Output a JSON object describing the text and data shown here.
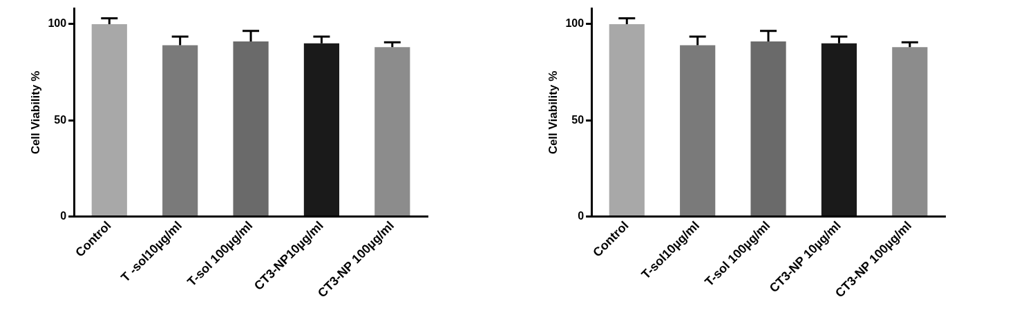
{
  "chart_data": [
    {
      "type": "bar",
      "ylabel": "Cell Viability %",
      "categories": [
        "Control",
        "T -sol10µg/ml",
        "T-sol 100µg/ml",
        "CT3-NP10µg/ml",
        "CT3-NP 100µg/ml"
      ],
      "values": [
        100,
        89,
        91,
        90,
        88
      ],
      "errors": [
        3,
        4.5,
        5.5,
        3.5,
        2.5
      ],
      "colors": [
        "#a8a8a8",
        "#7a7a7a",
        "#6a6a6a",
        "#1a1a1a",
        "#8c8c8c"
      ],
      "ylim": [
        0,
        108
      ],
      "yticks": [
        0,
        50,
        100
      ]
    },
    {
      "type": "bar",
      "ylabel": "Cell Viability %",
      "categories": [
        "Control",
        "T-sol10µg/ml",
        "T-sol 100µg/ml",
        "CT3-NP 10µg/ml",
        "CT3-NP 100µg/ml"
      ],
      "values": [
        100,
        89,
        91,
        90,
        88
      ],
      "errors": [
        3,
        4.5,
        5.5,
        3.5,
        2.5
      ],
      "colors": [
        "#a8a8a8",
        "#7a7a7a",
        "#6a6a6a",
        "#1a1a1a",
        "#8c8c8c"
      ],
      "ylim": [
        0,
        108
      ],
      "yticks": [
        0,
        50,
        100
      ]
    }
  ]
}
